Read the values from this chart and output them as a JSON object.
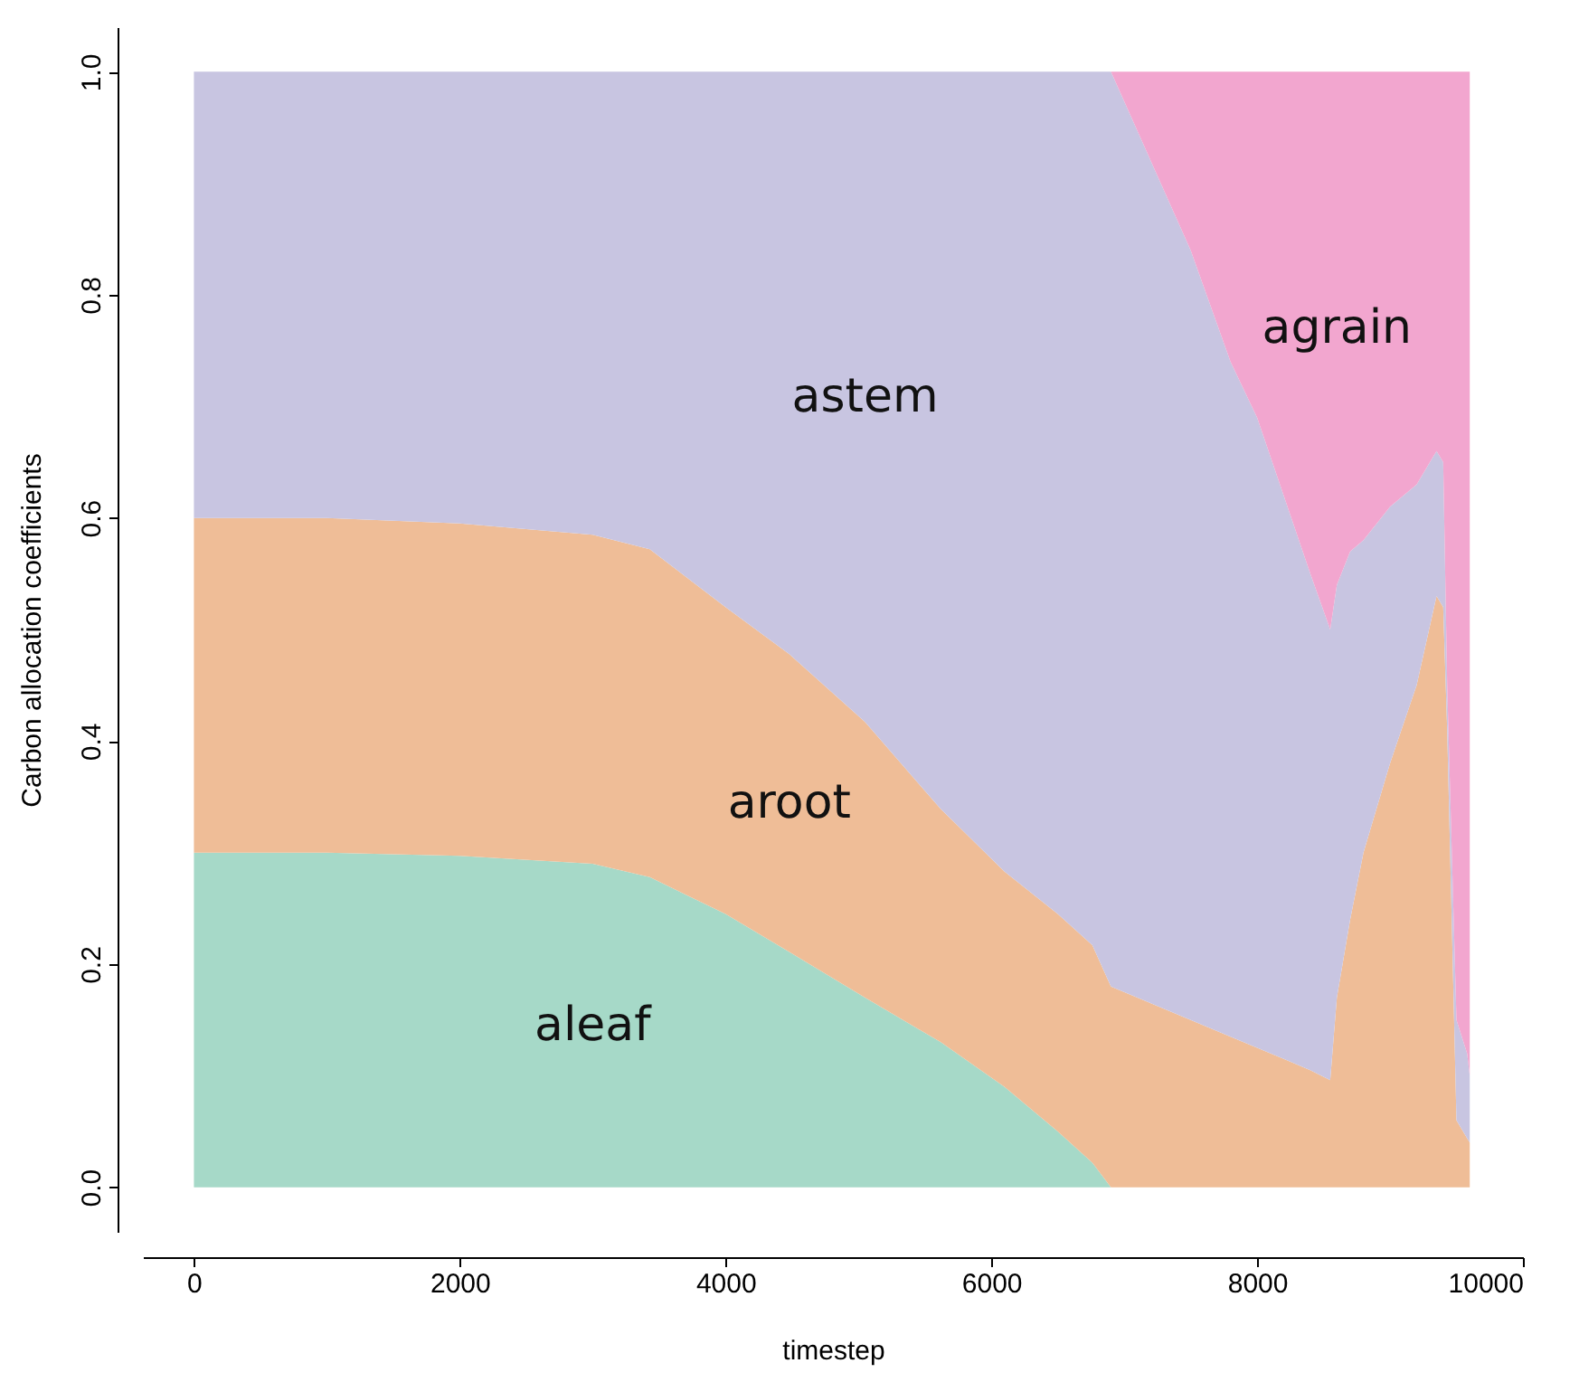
{
  "chart_data": {
    "type": "area",
    "stacked": true,
    "xlabel": "timestep",
    "ylabel": "Carbon allocation coefficients",
    "x": [
      0,
      1000,
      2000,
      3000,
      3430,
      4000,
      4480,
      5050,
      5620,
      6100,
      6500,
      6760,
      6900,
      7200,
      7500,
      7800,
      8000,
      8200,
      8400,
      8550,
      8600,
      8700,
      8800,
      9000,
      9200,
      9350,
      9400,
      9430,
      9500,
      9580,
      9600
    ],
    "series": [
      {
        "name": "aleaf",
        "color": "#a6d9c8",
        "values": [
          0.3,
          0.3,
          0.297,
          0.29,
          0.278,
          0.245,
          0.211,
          0.17,
          0.13,
          0.09,
          0.05,
          0.022,
          0,
          0,
          0,
          0,
          0,
          0,
          0,
          0,
          0,
          0,
          0,
          0,
          0,
          0,
          0,
          0,
          0,
          0,
          0
        ]
      },
      {
        "name": "aroot",
        "color": "#efbd97",
        "values": [
          0.3,
          0.3,
          0.298,
          0.295,
          0.294,
          0.275,
          0.267,
          0.247,
          0.209,
          0.193,
          0.195,
          0.195,
          0.18,
          0.165,
          0.15,
          0.135,
          0.125,
          0.115,
          0.105,
          0.096,
          0.17,
          0.24,
          0.3,
          0.38,
          0.45,
          0.53,
          0.52,
          0.41,
          0.06,
          0.044,
          0.04
        ]
      },
      {
        "name": "astem",
        "color": "#c8c5e1",
        "values": [
          0.4,
          0.4,
          0.405,
          0.415,
          0.428,
          0.48,
          0.522,
          0.583,
          0.661,
          0.717,
          0.755,
          0.783,
          0.82,
          0.755,
          0.69,
          0.605,
          0.565,
          0.505,
          0.445,
          0.404,
          0.37,
          0.33,
          0.28,
          0.23,
          0.18,
          0.13,
          0.13,
          0.04,
          0.09,
          0.076,
          0.06
        ]
      },
      {
        "name": "agrain",
        "color": "#f2a6cf",
        "values": [
          0,
          0,
          0,
          0,
          0,
          0,
          0,
          0,
          0,
          0,
          0,
          0,
          0,
          0.08,
          0.16,
          0.26,
          0.31,
          0.38,
          0.45,
          0.5,
          0.46,
          0.43,
          0.42,
          0.39,
          0.37,
          0.34,
          0.35,
          0.55,
          0.85,
          0.88,
          0.9
        ]
      }
    ],
    "xlim": [
      -384,
      10000
    ],
    "xticks": [
      0,
      {
        "value": 2000,
        "label": "2000"
      },
      {
        "value": 4000,
        "label": "4000"
      },
      {
        "value": 6000,
        "label": "6000"
      },
      {
        "value": 8000,
        "label": "8000"
      },
      {
        "value": 10000,
        "label": "10000"
      }
    ],
    "ylim": [
      -0.04,
      1.04
    ],
    "yticks": [
      {
        "value": 0,
        "label": "0.0"
      },
      {
        "value": 0.2,
        "label": "0.2"
      },
      {
        "value": 0.4,
        "label": "0.4"
      },
      {
        "value": 0.6,
        "label": "0.6"
      },
      {
        "value": 0.8,
        "label": "0.8"
      },
      {
        "value": 1,
        "label": "1.0"
      }
    ],
    "grid": false,
    "legend": false
  }
}
